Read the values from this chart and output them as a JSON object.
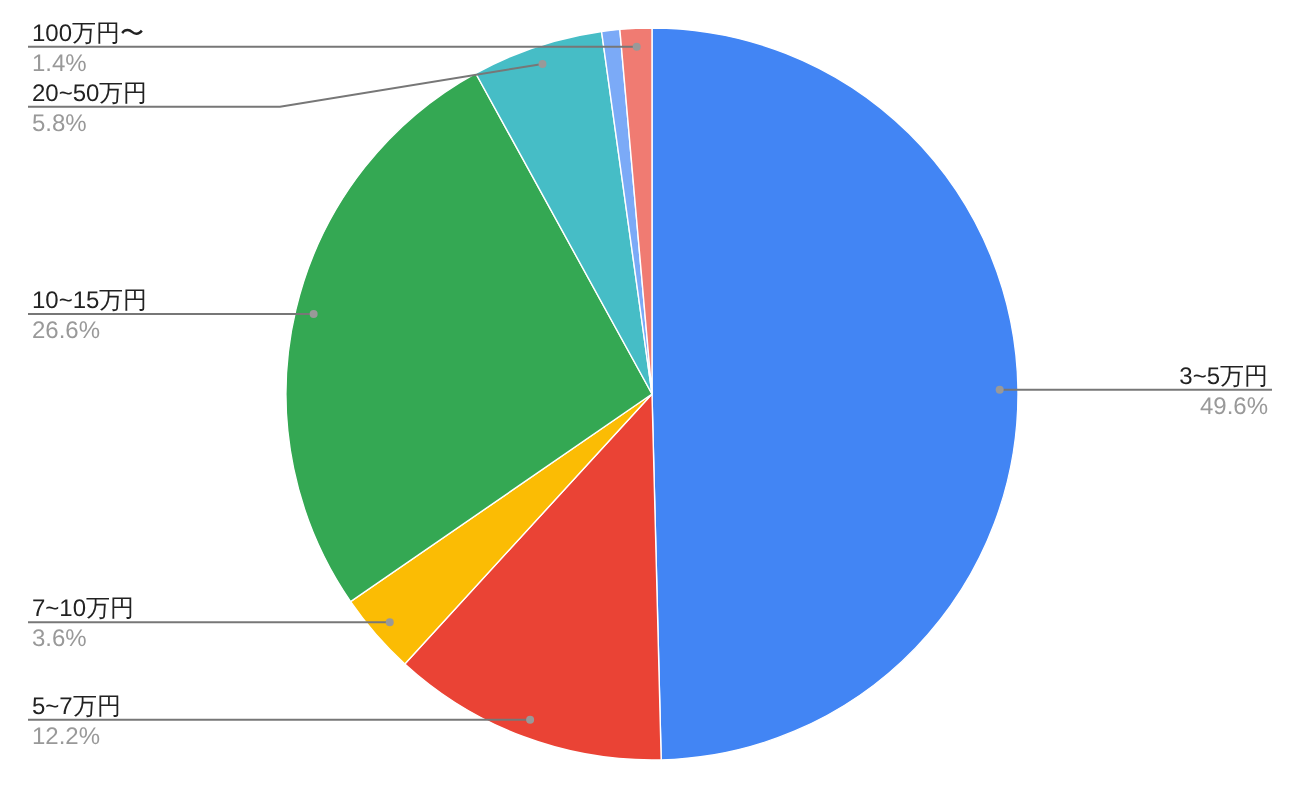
{
  "chart_data": {
    "type": "pie",
    "categories": [
      "3~5万円",
      "5~7万円",
      "7~10万円",
      "10~15万円",
      "20~50万円",
      null,
      "100万円〜"
    ],
    "values": [
      49.6,
      12.2,
      3.6,
      26.6,
      5.8,
      0.8,
      1.4
    ],
    "colors": [
      "#4285f4",
      "#ea4335",
      "#fbbc04",
      "#34a853",
      "#46bdc6",
      "#7baaf7",
      "#f07b72"
    ],
    "value_labels": [
      "49.6%",
      "12.2%",
      "3.6%",
      "26.6%",
      "5.8%",
      null,
      "1.4%"
    ],
    "legend": false
  }
}
